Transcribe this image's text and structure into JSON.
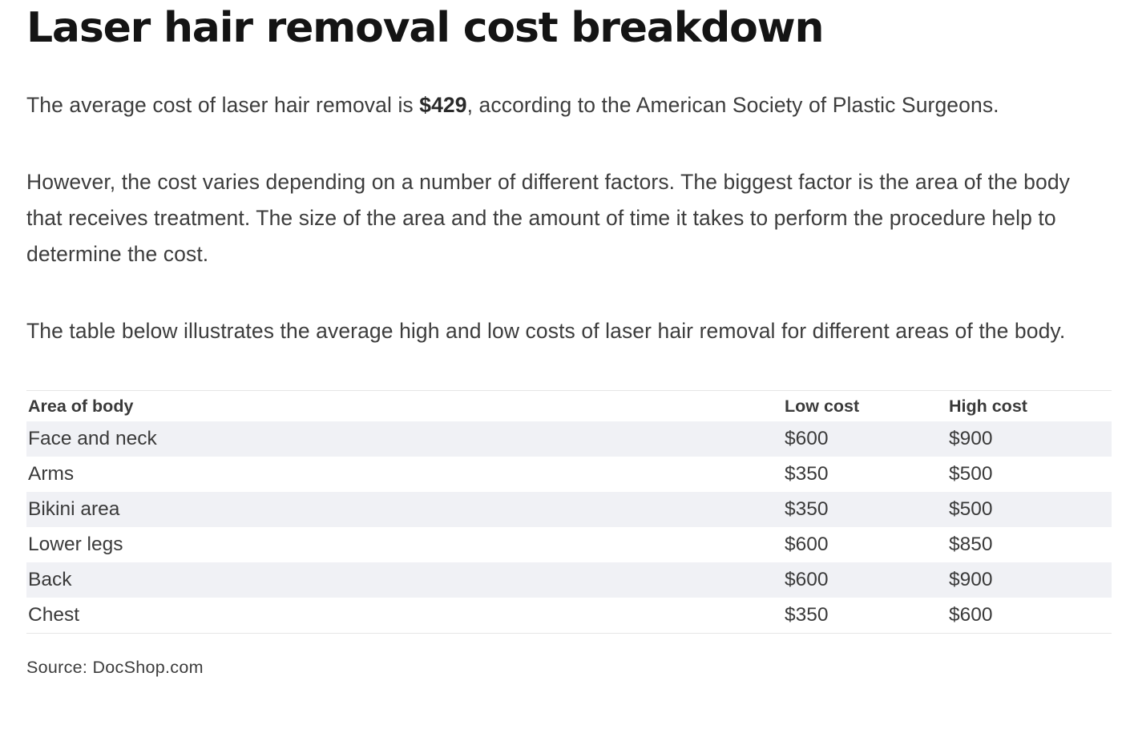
{
  "article": {
    "title": "Laser hair removal cost breakdown",
    "intro": {
      "before": "The average cost of laser hair removal is ",
      "highlight": "$429",
      "after": ", according to the American Society of Plastic Surgeons."
    },
    "paragraph2": "However, the cost varies depending on a number of different factors. The biggest factor is the area of the body that receives treatment. The size of the area and the amount of time it takes to perform the procedure help to determine the cost.",
    "paragraph3": "The table below illustrates the average high and low costs of laser hair removal for different areas of the body."
  },
  "table": {
    "headers": [
      "Area of body",
      "Low cost",
      "High cost"
    ],
    "rows": [
      [
        "Face and neck",
        "$600",
        "$900"
      ],
      [
        "Arms",
        "$350",
        "$500"
      ],
      [
        "Bikini area",
        "$350",
        "$500"
      ],
      [
        "Lower legs",
        "$600",
        "$850"
      ],
      [
        "Back",
        "$600",
        "$900"
      ],
      [
        "Chest",
        "$350",
        "$600"
      ]
    ]
  },
  "source": "Source: DocShop.com"
}
